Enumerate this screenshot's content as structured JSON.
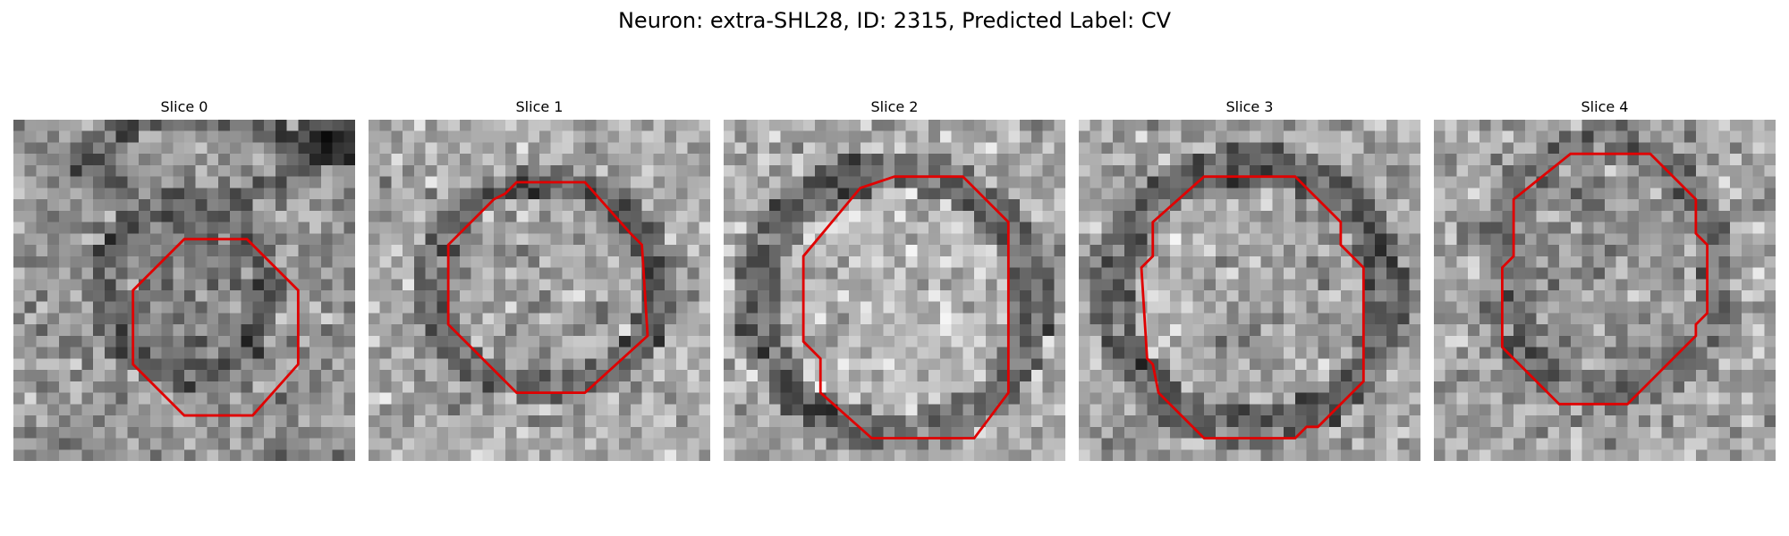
{
  "figure": {
    "title": "Neuron: extra-SHL28, ID: 2315, Predicted Label: CV"
  },
  "panels": [
    {
      "title": "Slice 0"
    },
    {
      "title": "Slice 1"
    },
    {
      "title": "Slice 2"
    },
    {
      "title": "Slice 3"
    },
    {
      "title": "Slice 4"
    }
  ],
  "colors": {
    "contour": "#e00000",
    "background": "#ffffff"
  }
}
